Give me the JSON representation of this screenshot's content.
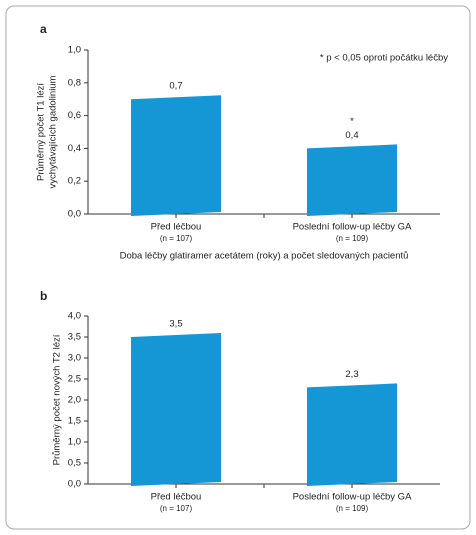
{
  "chart_data": [
    {
      "type": "bar",
      "panel_label": "a",
      "ylabel": [
        "Průměrný počet T1 lézí",
        "vychytávajících gadolinium"
      ],
      "xlabel": "Doba léčby glatiramer acetátem (roky) a počet sledovaných pacientů",
      "annotation": "* p < 0,05 oproti počátku léčby",
      "categories": [
        "Před léčbou",
        "Poslední follow-up léčby GA"
      ],
      "category_notes": [
        "(n = 107)",
        "(n = 109)"
      ],
      "values": [
        0.7,
        0.4
      ],
      "value_labels": [
        "0,7",
        "0,4"
      ],
      "value_markers": [
        null,
        "*"
      ],
      "color": "#1597d5",
      "ylim": [
        0,
        1.0
      ],
      "yticks": [
        {
          "value": 0,
          "label": "0,0"
        },
        {
          "value": 0.2,
          "label": "0,2"
        },
        {
          "value": 0.4,
          "label": "0,4"
        },
        {
          "value": 0.6,
          "label": "0,6"
        },
        {
          "value": 0.8,
          "label": "0,8"
        },
        {
          "value": 1.0,
          "label": "1,0"
        }
      ]
    },
    {
      "type": "bar",
      "panel_label": "b",
      "ylabel": [
        "Průměrný počet nových T2 lézí"
      ],
      "categories": [
        "Před léčbou",
        "Poslední follow-up léčby GA"
      ],
      "category_notes": [
        "(n = 107)",
        "(n = 109)"
      ],
      "values": [
        3.5,
        2.3
      ],
      "value_labels": [
        "3,5",
        "2,3"
      ],
      "color": "#1597d5",
      "ylim": [
        0,
        4.0
      ],
      "yticks": [
        {
          "value": 0,
          "label": "0,0"
        },
        {
          "value": 0.5,
          "label": "0,5"
        },
        {
          "value": 1.0,
          "label": "1,0"
        },
        {
          "value": 1.5,
          "label": "1,5"
        },
        {
          "value": 2.0,
          "label": "2,0"
        },
        {
          "value": 2.5,
          "label": "2,5"
        },
        {
          "value": 3.0,
          "label": "3,0"
        },
        {
          "value": 3.5,
          "label": "3,5"
        },
        {
          "value": 4.0,
          "label": "4,0"
        }
      ]
    }
  ]
}
